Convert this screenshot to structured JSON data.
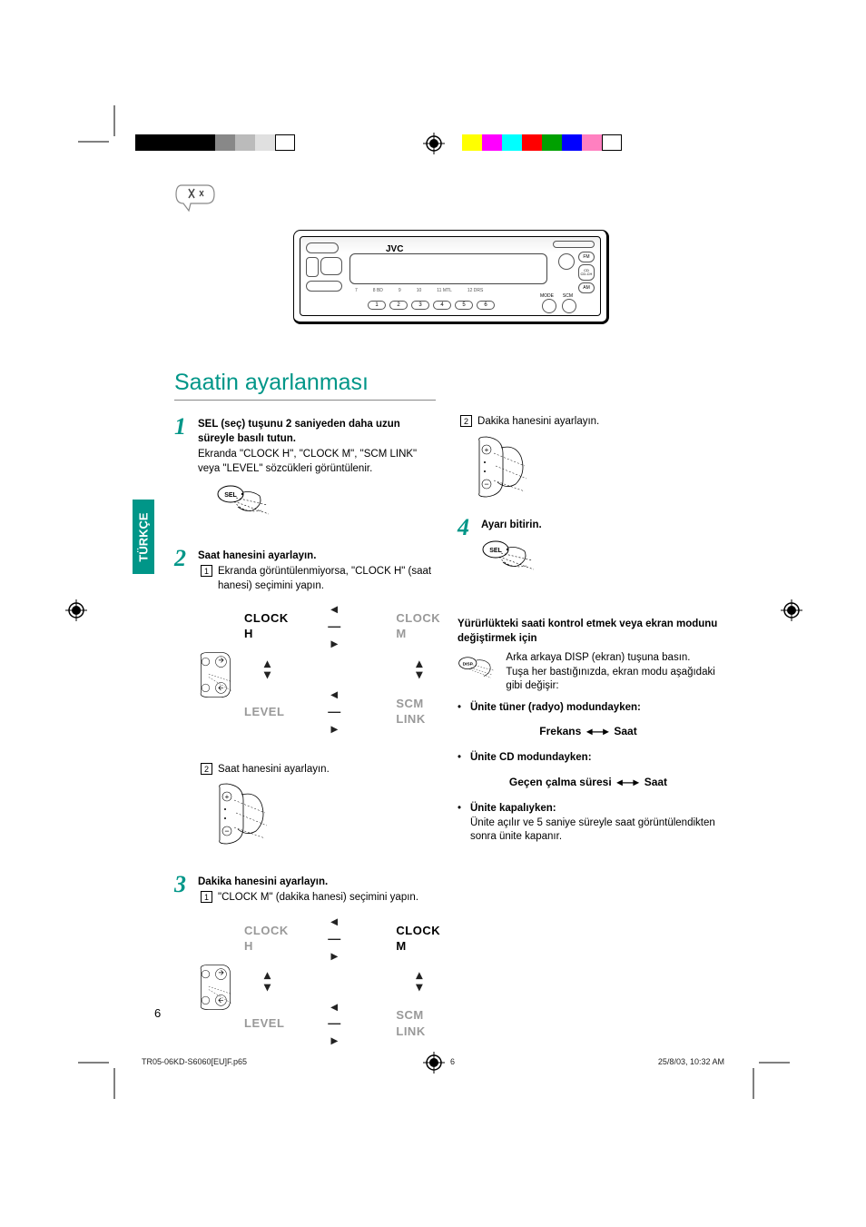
{
  "page_number": "6",
  "language_tab": "TÜRKÇE",
  "section_title": "Saatin ayarlanması",
  "device": {
    "brand": "JVC",
    "preset_numbers": [
      "1",
      "2",
      "3",
      "4",
      "5",
      "6"
    ],
    "scale_labels": [
      "7",
      "8  BD",
      "9",
      "10",
      "11  MTL",
      "12 DRS"
    ],
    "right_buttons": [
      "FM",
      "CD",
      "CD-CH",
      "AM"
    ],
    "eject": "",
    "mode_label": "MODE",
    "scm_label": "SCM"
  },
  "color_bars": {
    "left": [
      "#000000",
      "#000000",
      "#000000",
      "#000000",
      "#888888",
      "#bbbbbb",
      "#e0e0e0",
      "#ffffff"
    ],
    "right": [
      "#ffff00",
      "#ff00ff",
      "#00ffff",
      "#ff0000",
      "#00a000",
      "#0000ff",
      "#ff80c0",
      "#ffffff"
    ]
  },
  "steps": [
    {
      "num": "1",
      "head": "SEL (seç) tuşunu 2 saniyeden daha uzun süreyle basılı tutun.",
      "body": "Ekranda \"CLOCK H\", \"CLOCK M\", \"SCM LINK\" veya \"LEVEL\" sözcükleri görüntülenir.",
      "icon": "sel"
    },
    {
      "num": "2",
      "head": "Saat hanesini ayarlayın.",
      "sub1_num": "1",
      "sub1": "Ekranda görüntülenmiyorsa, \"CLOCK H\" (saat hanesi) seçimini yapın.",
      "nav_highlight": "CLOCK H",
      "sub2_num": "2",
      "sub2": "Saat hanesini ayarlayın.",
      "icon": "plusminus"
    },
    {
      "num": "3",
      "head": "Dakika hanesini ayarlayın.",
      "sub1_num": "1",
      "sub1": "\"CLOCK M\" (dakika hanesi) seçimini yapın.",
      "nav_highlight": "CLOCK M",
      "sub2_num": "2",
      "sub2_col2": "Dakika hanesini ayarlayın.",
      "icon": "plusminus"
    },
    {
      "num": "4",
      "head": "Ayarı bitirin.",
      "icon": "sel"
    }
  ],
  "nav_labels": [
    "CLOCK H",
    "CLOCK M",
    "LEVEL",
    "SCM LINK"
  ],
  "right_col": {
    "check_head": "Yürürlükteki saati kontrol etmek veya ekran modunu değiştirmek için",
    "disp_text_1": "Arka arkaya DISP (ekran) tuşuna basın.",
    "disp_text_2": "Tuşa her bastığınızda, ekran modu aşağıdaki gibi değişir:",
    "b1_head": "Ünite tüner (radyo) modundayken:",
    "b1_left": "Frekans",
    "b1_right": "Saat",
    "b2_head": "Ünite CD modundayken:",
    "b2_left": "Geçen çalma süresi",
    "b2_right": "Saat",
    "b3_head": "Ünite kapalıyken:",
    "b3_body": "Ünite açılır ve 5 saniye süreyle saat görüntülendikten sonra ünite kapanır."
  },
  "footer": {
    "file": "TR05-06KD-S6060[EU]F.p65",
    "mid": "6",
    "date": "25/8/03, 10:32 AM"
  }
}
